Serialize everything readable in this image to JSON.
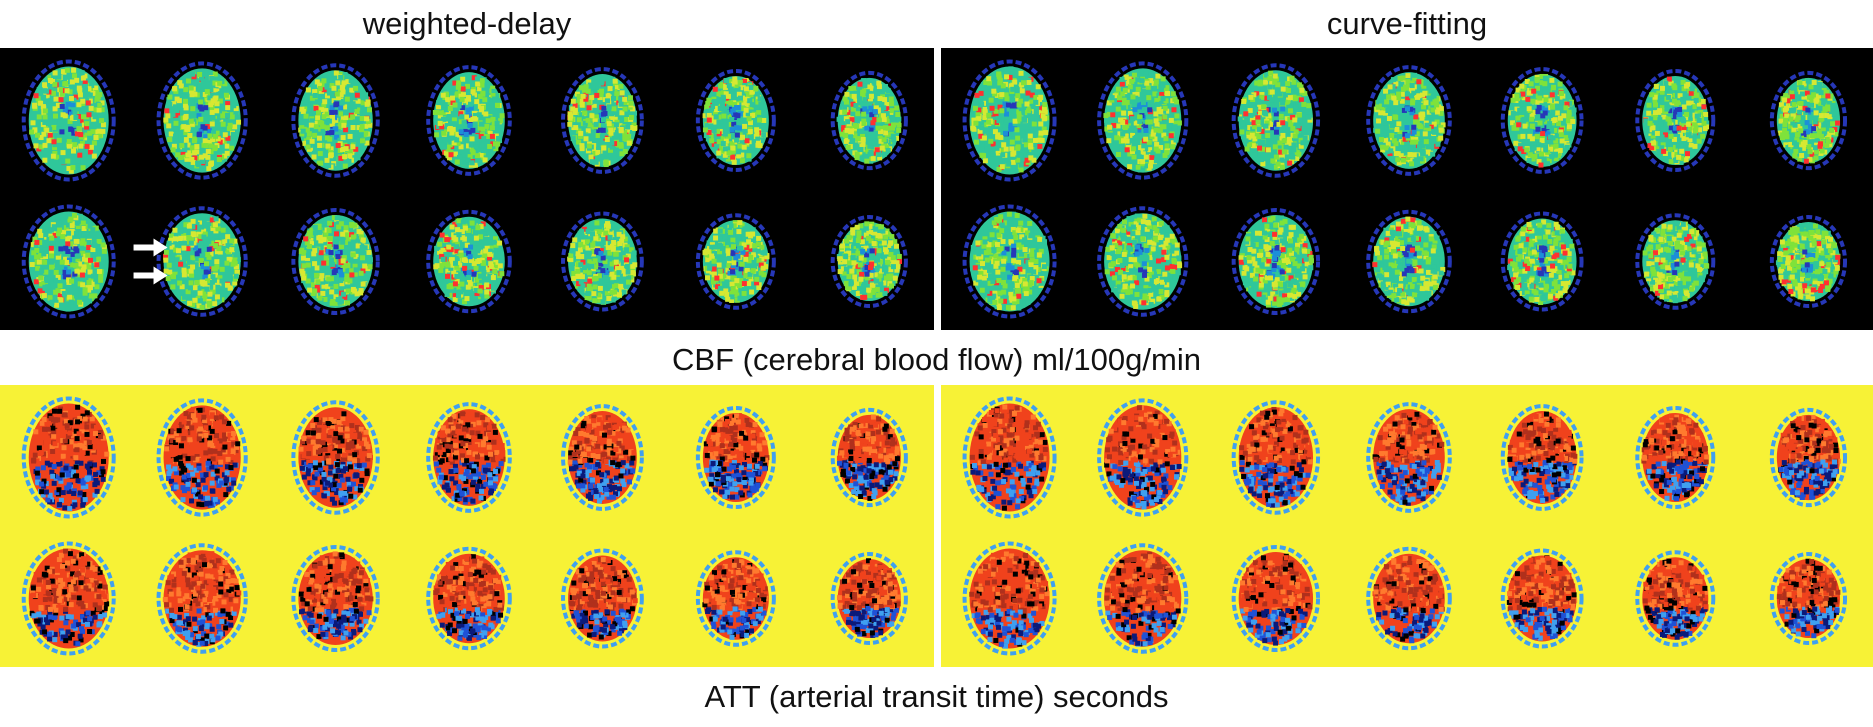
{
  "headers": {
    "left": "weighted-delay",
    "right": "curve-fitting"
  },
  "captions": {
    "cbf": "CBF (cerebral blood flow) ml/100g/min",
    "att": "ATT (arterial transit time) seconds"
  },
  "panels": {
    "cbf": {
      "background": "#000000",
      "colormap": [
        "#1a0f5a",
        "#2637b8",
        "#1c8fd8",
        "#2fc79a",
        "#7fe23a",
        "#d7e832"
      ]
    },
    "att": {
      "background": "#f7f236",
      "colormap": [
        "#0b1a7a",
        "#1f52d6",
        "#3fa0f0",
        "#b0301c",
        "#f0421c",
        "#ff7a2e"
      ]
    }
  },
  "grid": {
    "rows": 2,
    "cols": 7
  },
  "annotations": {
    "arrows": 2,
    "arrow_color": "#ffffff",
    "arrow_panel": "cbf-weighted-delay",
    "arrow_slice": "row 2, column 2"
  }
}
